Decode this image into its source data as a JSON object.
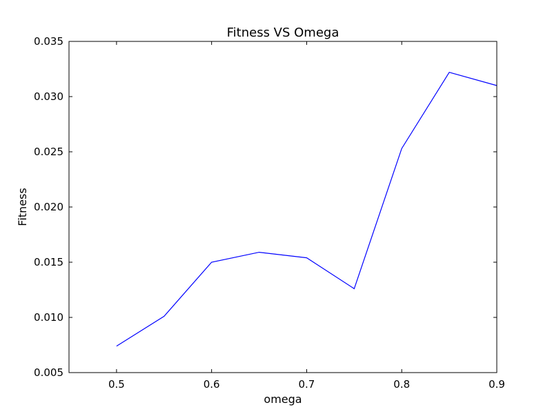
{
  "chart_data": {
    "type": "line",
    "title": "Fitness VS Omega",
    "xlabel": "omega",
    "ylabel": "Fitness",
    "xlim": [
      0.45,
      0.9
    ],
    "ylim": [
      0.005,
      0.035
    ],
    "xticks": [
      "0.5",
      "0.6",
      "0.7",
      "0.8",
      "0.9"
    ],
    "yticks": [
      "0.005",
      "0.010",
      "0.015",
      "0.020",
      "0.025",
      "0.030",
      "0.035"
    ],
    "grid": false,
    "series": [
      {
        "color": "#0000ff",
        "x": [
          0.5,
          0.55,
          0.6,
          0.65,
          0.7,
          0.75,
          0.8,
          0.85,
          0.9
        ],
        "y": [
          0.0074,
          0.0101,
          0.015,
          0.0159,
          0.0154,
          0.0126,
          0.0253,
          0.0322,
          0.031
        ]
      }
    ]
  }
}
